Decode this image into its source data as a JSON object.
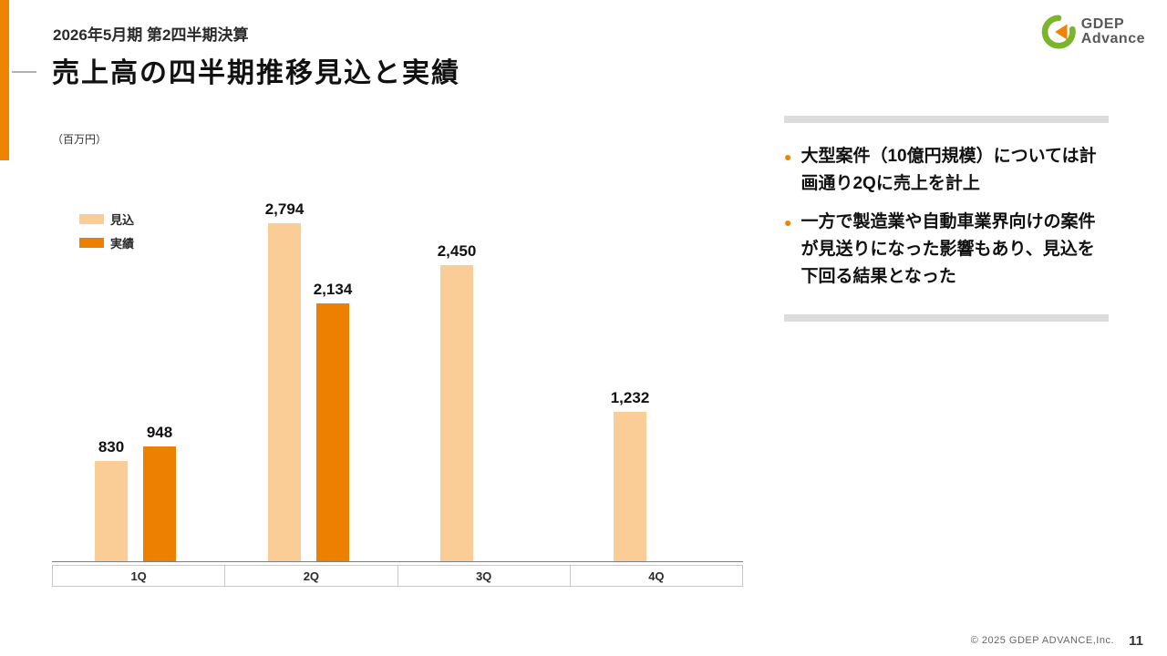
{
  "slide": {
    "eyebrow": "2026年5月期 第2四半期決算",
    "title": "売上高の四半期推移見込と実績",
    "unit_label": "（百万円）",
    "logo": {
      "line1": "GDEP",
      "line2": "Advance"
    },
    "footer": {
      "copyright": "© 2025 GDEP ADVANCE,Inc.",
      "page": "11"
    }
  },
  "chart_data": {
    "type": "bar",
    "title": "売上高の四半期推移見込と実績",
    "unit": "百万円",
    "categories": [
      "1Q",
      "2Q",
      "3Q",
      "4Q"
    ],
    "series": [
      {
        "name": "見込",
        "color": "#FACC96",
        "values": [
          830,
          2794,
          2450,
          1232
        ]
      },
      {
        "name": "実績",
        "color": "#EE8000",
        "values": [
          948,
          2134,
          null,
          null
        ]
      }
    ],
    "value_labels": [
      [
        "830",
        "2,794",
        "2,450",
        "1,232"
      ],
      [
        "948",
        "2,134",
        "",
        ""
      ]
    ],
    "ylim": [
      0,
      2900
    ],
    "grid": false,
    "legend_position": "top-left"
  },
  "notes": {
    "bullet_color": "#F08300",
    "bullets": [
      "大型案件（10億円規模）については計画通り2Qに売上を計上",
      "一方で製造業や自動車業界向けの案件が見送りになった影響もあり、見込を下回る結果となった"
    ]
  }
}
